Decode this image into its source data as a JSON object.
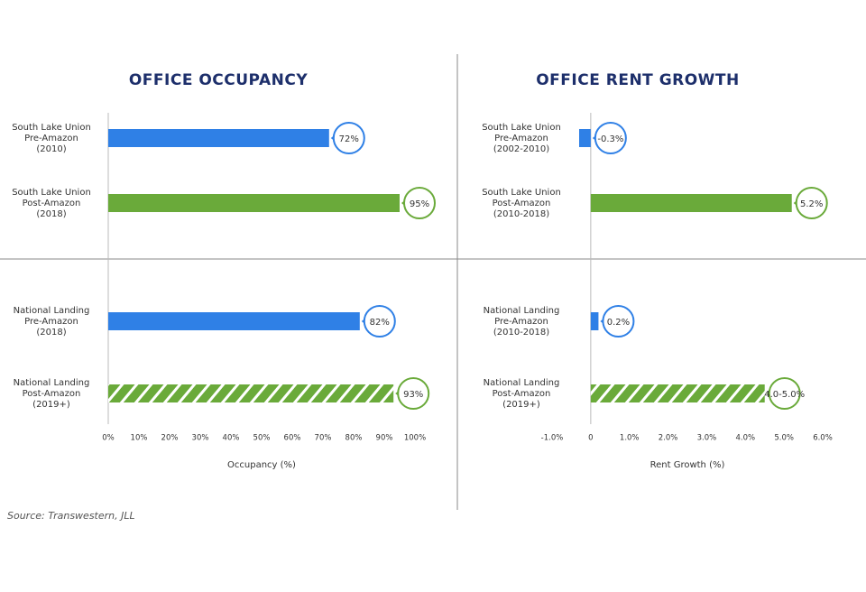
{
  "source": "Source: Transwestern, JLL",
  "chart_data": [
    {
      "type": "bar",
      "orientation": "horizontal",
      "title": "OFFICE OCCUPANCY",
      "x_label": "Occupancy (%)",
      "categories": [
        [
          "South Lake Union",
          "Pre-Amazon",
          "(2010)"
        ],
        [
          "South Lake Union",
          "Post-Amazon",
          "(2018)"
        ],
        [
          "National Landing",
          "Pre-Amazon",
          "(2018)"
        ],
        [
          "National Landing",
          "Post-Amazon",
          "(2019+)"
        ]
      ],
      "values": [
        72,
        95,
        82,
        93
      ],
      "value_labels": [
        "72%",
        "95%",
        "82%",
        "93%"
      ],
      "colors": [
        "#2f80e6",
        "#6aaa3a",
        "#2f80e6",
        "#6aaa3a"
      ],
      "hatched": [
        false,
        false,
        false,
        true
      ],
      "xlim": [
        0,
        100
      ],
      "xticks": [
        {
          "value": 0,
          "label": "0%"
        },
        {
          "value": 10,
          "label": "10%"
        },
        {
          "value": 20,
          "label": "20%"
        },
        {
          "value": 30,
          "label": "30%"
        },
        {
          "value": 40,
          "label": "40%"
        },
        {
          "value": 50,
          "label": "50%"
        },
        {
          "value": 60,
          "label": "60%"
        },
        {
          "value": 70,
          "label": "70%"
        },
        {
          "value": 80,
          "label": "80%"
        },
        {
          "value": 90,
          "label": "90%"
        },
        {
          "value": 100,
          "label": "100%"
        }
      ]
    },
    {
      "type": "bar",
      "orientation": "horizontal",
      "title": "OFFICE RENT GROWTH",
      "x_label": "Rent Growth (%)",
      "categories": [
        [
          "South Lake Union",
          "Pre-Amazon",
          "(2002-2010)"
        ],
        [
          "South Lake Union",
          "Post-Amazon",
          "(2010-2018)"
        ],
        [
          "National Landing",
          "Pre-Amazon",
          "(2010-2018)"
        ],
        [
          "National Landing",
          "Post-Amazon",
          "(2019+)"
        ]
      ],
      "values": [
        -0.3,
        5.2,
        0.2,
        4.5
      ],
      "value_labels": [
        "-0.3%",
        "5.2%",
        "0.2%",
        "4.0-5.0%"
      ],
      "colors": [
        "#2f80e6",
        "#6aaa3a",
        "#2f80e6",
        "#6aaa3a"
      ],
      "hatched": [
        false,
        false,
        false,
        true
      ],
      "xlim": [
        -1,
        6
      ],
      "xticks": [
        {
          "value": -1,
          "label": "-1.0%"
        },
        0,
        {
          "value": 1,
          "label": "1.0%"
        },
        {
          "value": 2,
          "label": "2.0%"
        },
        {
          "value": 3,
          "label": "3.0%"
        },
        {
          "value": 4,
          "label": "4.0%"
        },
        {
          "value": 5,
          "label": "5.0%"
        },
        {
          "value": 6,
          "label": "6.0%"
        }
      ]
    }
  ]
}
